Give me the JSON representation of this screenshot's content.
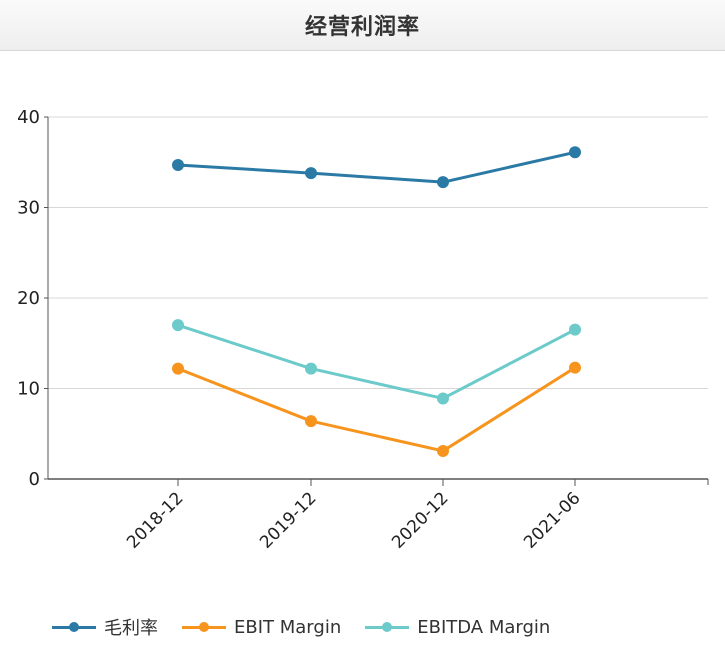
{
  "header": {
    "title": "经营利润率"
  },
  "chart_data": {
    "type": "line",
    "title": "经营利润率",
    "xlabel": "",
    "ylabel": "",
    "categories": [
      "2018-12",
      "2019-12",
      "2020-12",
      "2021-06"
    ],
    "ylim": [
      0,
      40
    ],
    "yticks": [
      0,
      10,
      20,
      30,
      40
    ],
    "grid": true,
    "legend_position": "bottom",
    "series": [
      {
        "name": "毛利率",
        "color": "#2b7aa6",
        "values": [
          34.7,
          33.8,
          32.8,
          36.1
        ]
      },
      {
        "name": "EBIT Margin",
        "color": "#f7941e",
        "values": [
          12.2,
          6.4,
          3.1,
          12.3
        ]
      },
      {
        "name": "EBITDA Margin",
        "color": "#6ccaca",
        "values": [
          17.0,
          12.2,
          8.9,
          16.5
        ]
      }
    ]
  }
}
